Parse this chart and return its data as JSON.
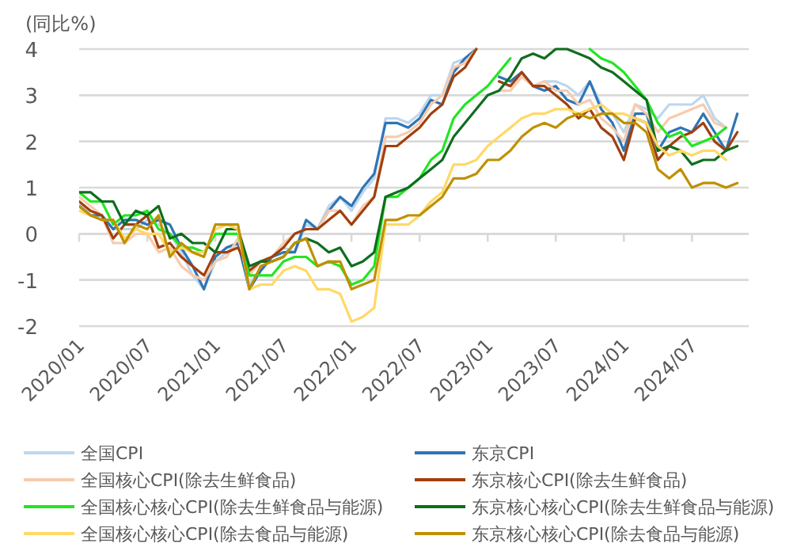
{
  "chart_data": {
    "type": "line",
    "ylabel": "(同比%)",
    "xlim": [
      "2020-01",
      "2024-12"
    ],
    "xticks": [
      {
        "value": "2020-01",
        "label": "2020/01"
      },
      {
        "value": "2020-07",
        "label": "2020/07"
      },
      {
        "value": "2021-01",
        "label": "2021/01"
      },
      {
        "value": "2021-07",
        "label": "2021/07"
      },
      {
        "value": "2022-01",
        "label": "2022/01"
      },
      {
        "value": "2022-07",
        "label": "2022/07"
      },
      {
        "value": "2023-01",
        "label": "2023/01"
      },
      {
        "value": "2023-07",
        "label": "2023/07"
      },
      {
        "value": "2024-01",
        "label": "2024/01"
      },
      {
        "value": "2024-07",
        "label": "2024/07"
      }
    ],
    "ylim": [
      -2,
      4
    ],
    "yticks": [
      -2,
      -1,
      0,
      1,
      2,
      3,
      4
    ],
    "grid": "y",
    "legend": "bottom",
    "marker": "none",
    "line_style": "solid",
    "x": [
      "2020-01",
      "2020-02",
      "2020-03",
      "2020-04",
      "2020-05",
      "2020-06",
      "2020-07",
      "2020-08",
      "2020-09",
      "2020-10",
      "2020-11",
      "2020-12",
      "2021-01",
      "2021-02",
      "2021-03",
      "2021-04",
      "2021-05",
      "2021-06",
      "2021-07",
      "2021-08",
      "2021-09",
      "2021-10",
      "2021-11",
      "2021-12",
      "2022-01",
      "2022-02",
      "2022-03",
      "2022-04",
      "2022-05",
      "2022-06",
      "2022-07",
      "2022-08",
      "2022-09",
      "2022-10",
      "2022-11",
      "2022-12",
      "2023-01",
      "2023-02",
      "2023-03",
      "2023-04",
      "2023-05",
      "2023-06",
      "2023-07",
      "2023-08",
      "2023-09",
      "2023-10",
      "2023-11",
      "2023-12",
      "2024-01",
      "2024-02",
      "2024-03",
      "2024-04",
      "2024-05",
      "2024-06",
      "2024-07",
      "2024-08",
      "2024-09",
      "2024-10",
      "2024-11"
    ],
    "series": [
      {
        "name": "全国CPI",
        "color": "#bdd7ee",
        "values": [
          0.7,
          0.4,
          0.4,
          0.1,
          0.1,
          0.1,
          0.3,
          0.2,
          0.0,
          -0.4,
          -0.9,
          -1.2,
          -0.6,
          -0.4,
          -0.2,
          -1.1,
          -0.8,
          -0.5,
          -0.3,
          -0.4,
          0.2,
          0.1,
          0.6,
          0.8,
          0.5,
          0.9,
          1.2,
          2.5,
          2.5,
          2.4,
          2.6,
          3.0,
          3.0,
          3.7,
          3.8,
          4.0,
          null,
          3.3,
          3.2,
          3.5,
          3.2,
          3.3,
          3.3,
          3.2,
          3.0,
          3.3,
          2.8,
          2.6,
          2.2,
          2.8,
          2.7,
          2.5,
          2.8,
          2.8,
          2.8,
          3.0,
          2.5,
          2.3,
          null
        ]
      },
      {
        "name": "东京CPI",
        "color": "#2e75b6",
        "values": [
          0.6,
          0.4,
          0.4,
          0.1,
          0.3,
          0.3,
          0.2,
          0.3,
          0.2,
          -0.3,
          -0.7,
          -1.2,
          -0.5,
          -0.3,
          -0.2,
          -1.2,
          -0.8,
          -0.5,
          -0.4,
          -0.4,
          0.3,
          0.1,
          0.5,
          0.8,
          0.6,
          1.0,
          1.3,
          2.4,
          2.4,
          2.3,
          2.5,
          2.9,
          2.8,
          3.5,
          3.8,
          4.0,
          null,
          3.4,
          3.3,
          3.5,
          3.2,
          3.1,
          3.2,
          2.9,
          2.8,
          3.3,
          2.7,
          2.4,
          1.8,
          2.6,
          2.6,
          1.8,
          2.2,
          2.3,
          2.2,
          2.6,
          2.2,
          1.8,
          2.6
        ]
      },
      {
        "name": "全国核心CPI(除去生鲜食品)",
        "color": "#f8cbad",
        "values": [
          0.8,
          0.6,
          0.4,
          -0.2,
          -0.2,
          0.0,
          0.0,
          -0.4,
          -0.3,
          -0.7,
          -0.9,
          -1.0,
          -0.6,
          -0.5,
          -0.1,
          -0.9,
          -0.6,
          -0.5,
          -0.2,
          0.0,
          0.1,
          0.1,
          0.5,
          0.5,
          0.2,
          0.6,
          0.8,
          2.1,
          2.1,
          2.2,
          2.4,
          2.8,
          3.0,
          3.6,
          3.7,
          4.0,
          null,
          3.1,
          3.1,
          3.4,
          3.2,
          3.3,
          3.1,
          3.1,
          2.8,
          2.9,
          2.5,
          2.3,
          2.0,
          2.8,
          2.6,
          2.2,
          2.5,
          2.6,
          2.7,
          2.8,
          2.4,
          2.3,
          null
        ]
      },
      {
        "name": "东京核心CPI(除去生鲜食品)",
        "color": "#a0400e",
        "values": [
          0.7,
          0.5,
          0.4,
          -0.1,
          0.2,
          0.2,
          0.4,
          -0.3,
          -0.2,
          -0.5,
          -0.7,
          -0.9,
          -0.4,
          -0.4,
          -0.3,
          -0.8,
          -0.6,
          -0.5,
          -0.3,
          0.0,
          0.1,
          0.1,
          0.3,
          0.5,
          0.2,
          0.5,
          0.8,
          1.9,
          1.9,
          2.1,
          2.3,
          2.6,
          2.8,
          3.4,
          3.6,
          4.0,
          null,
          3.3,
          3.2,
          3.5,
          3.2,
          3.2,
          3.0,
          2.8,
          2.5,
          2.7,
          2.3,
          2.1,
          1.6,
          2.5,
          2.4,
          1.6,
          1.9,
          2.1,
          2.2,
          2.4,
          2.0,
          1.8,
          2.2
        ]
      },
      {
        "name": "全国核心核心CPI(除去生鲜食品与能源)",
        "color": "#22e622",
        "values": [
          0.9,
          0.7,
          0.7,
          0.2,
          0.4,
          0.4,
          0.5,
          0.1,
          0.0,
          -0.3,
          -0.3,
          -0.4,
          0.0,
          0.0,
          0.0,
          -0.9,
          -0.9,
          -0.9,
          -0.6,
          -0.5,
          -0.5,
          -0.7,
          -0.6,
          -0.7,
          -1.1,
          -1.0,
          -0.7,
          0.8,
          0.8,
          1.0,
          1.2,
          1.6,
          1.8,
          2.5,
          2.8,
          3.0,
          3.2,
          3.5,
          3.8,
          null,
          null,
          null,
          null,
          null,
          null,
          4.0,
          3.8,
          3.7,
          3.5,
          3.2,
          2.9,
          2.4,
          2.1,
          2.2,
          1.9,
          2.0,
          2.1,
          2.3,
          null
        ]
      },
      {
        "name": "东京核心核心CPI(除去生鲜食品与能源)",
        "color": "#0f6e1e",
        "values": [
          0.9,
          0.9,
          0.7,
          0.7,
          0.2,
          0.5,
          0.4,
          0.6,
          -0.1,
          0.0,
          -0.2,
          -0.2,
          -0.4,
          0.1,
          0.1,
          -0.7,
          -0.6,
          -0.6,
          -0.5,
          -0.2,
          -0.1,
          -0.2,
          -0.4,
          -0.3,
          -0.7,
          -0.6,
          -0.4,
          0.8,
          0.9,
          1.0,
          1.2,
          1.4,
          1.6,
          2.1,
          2.4,
          2.7,
          3.0,
          3.1,
          3.4,
          3.8,
          3.9,
          3.8,
          4.0,
          4.0,
          3.9,
          3.8,
          3.6,
          3.5,
          3.3,
          3.1,
          2.9,
          1.8,
          1.9,
          1.8,
          1.5,
          1.6,
          1.6,
          1.8,
          1.9
        ]
      },
      {
        "name": "全国核心核心CPI(除去食品与能源)",
        "color": "#ffd966",
        "values": [
          0.5,
          0.4,
          0.3,
          0.3,
          -0.1,
          0.1,
          0.0,
          0.0,
          -0.4,
          -0.3,
          -0.4,
          -0.4,
          0.1,
          0.2,
          0.1,
          -1.2,
          -1.1,
          -1.1,
          -0.8,
          -0.7,
          -0.8,
          -1.2,
          -1.2,
          -1.3,
          -1.9,
          -1.8,
          -1.6,
          0.2,
          0.2,
          0.2,
          0.4,
          0.7,
          0.9,
          1.5,
          1.5,
          1.6,
          1.9,
          2.1,
          2.3,
          2.5,
          2.6,
          2.6,
          2.7,
          2.7,
          2.6,
          2.7,
          2.8,
          2.6,
          2.6,
          2.5,
          2.4,
          1.9,
          1.7,
          1.8,
          1.7,
          1.8,
          1.8,
          1.6,
          null
        ]
      },
      {
        "name": "东京核心核心CPI(除去食品与能源)",
        "color": "#bf9000",
        "values": [
          0.6,
          0.4,
          0.3,
          0.3,
          -0.2,
          0.2,
          0.1,
          0.4,
          -0.5,
          -0.2,
          -0.4,
          -0.5,
          0.2,
          0.2,
          0.2,
          -1.2,
          -0.7,
          -0.6,
          -0.5,
          -0.2,
          -0.1,
          -0.7,
          -0.6,
          -0.6,
          -1.2,
          -1.1,
          -1.0,
          0.3,
          0.3,
          0.4,
          0.4,
          0.6,
          0.8,
          1.2,
          1.2,
          1.3,
          1.6,
          1.6,
          1.8,
          2.1,
          2.3,
          2.4,
          2.3,
          2.5,
          2.6,
          2.5,
          2.6,
          2.6,
          2.4,
          2.4,
          2.2,
          1.4,
          1.2,
          1.4,
          1.0,
          1.1,
          1.1,
          1.0,
          1.1
        ]
      }
    ]
  }
}
